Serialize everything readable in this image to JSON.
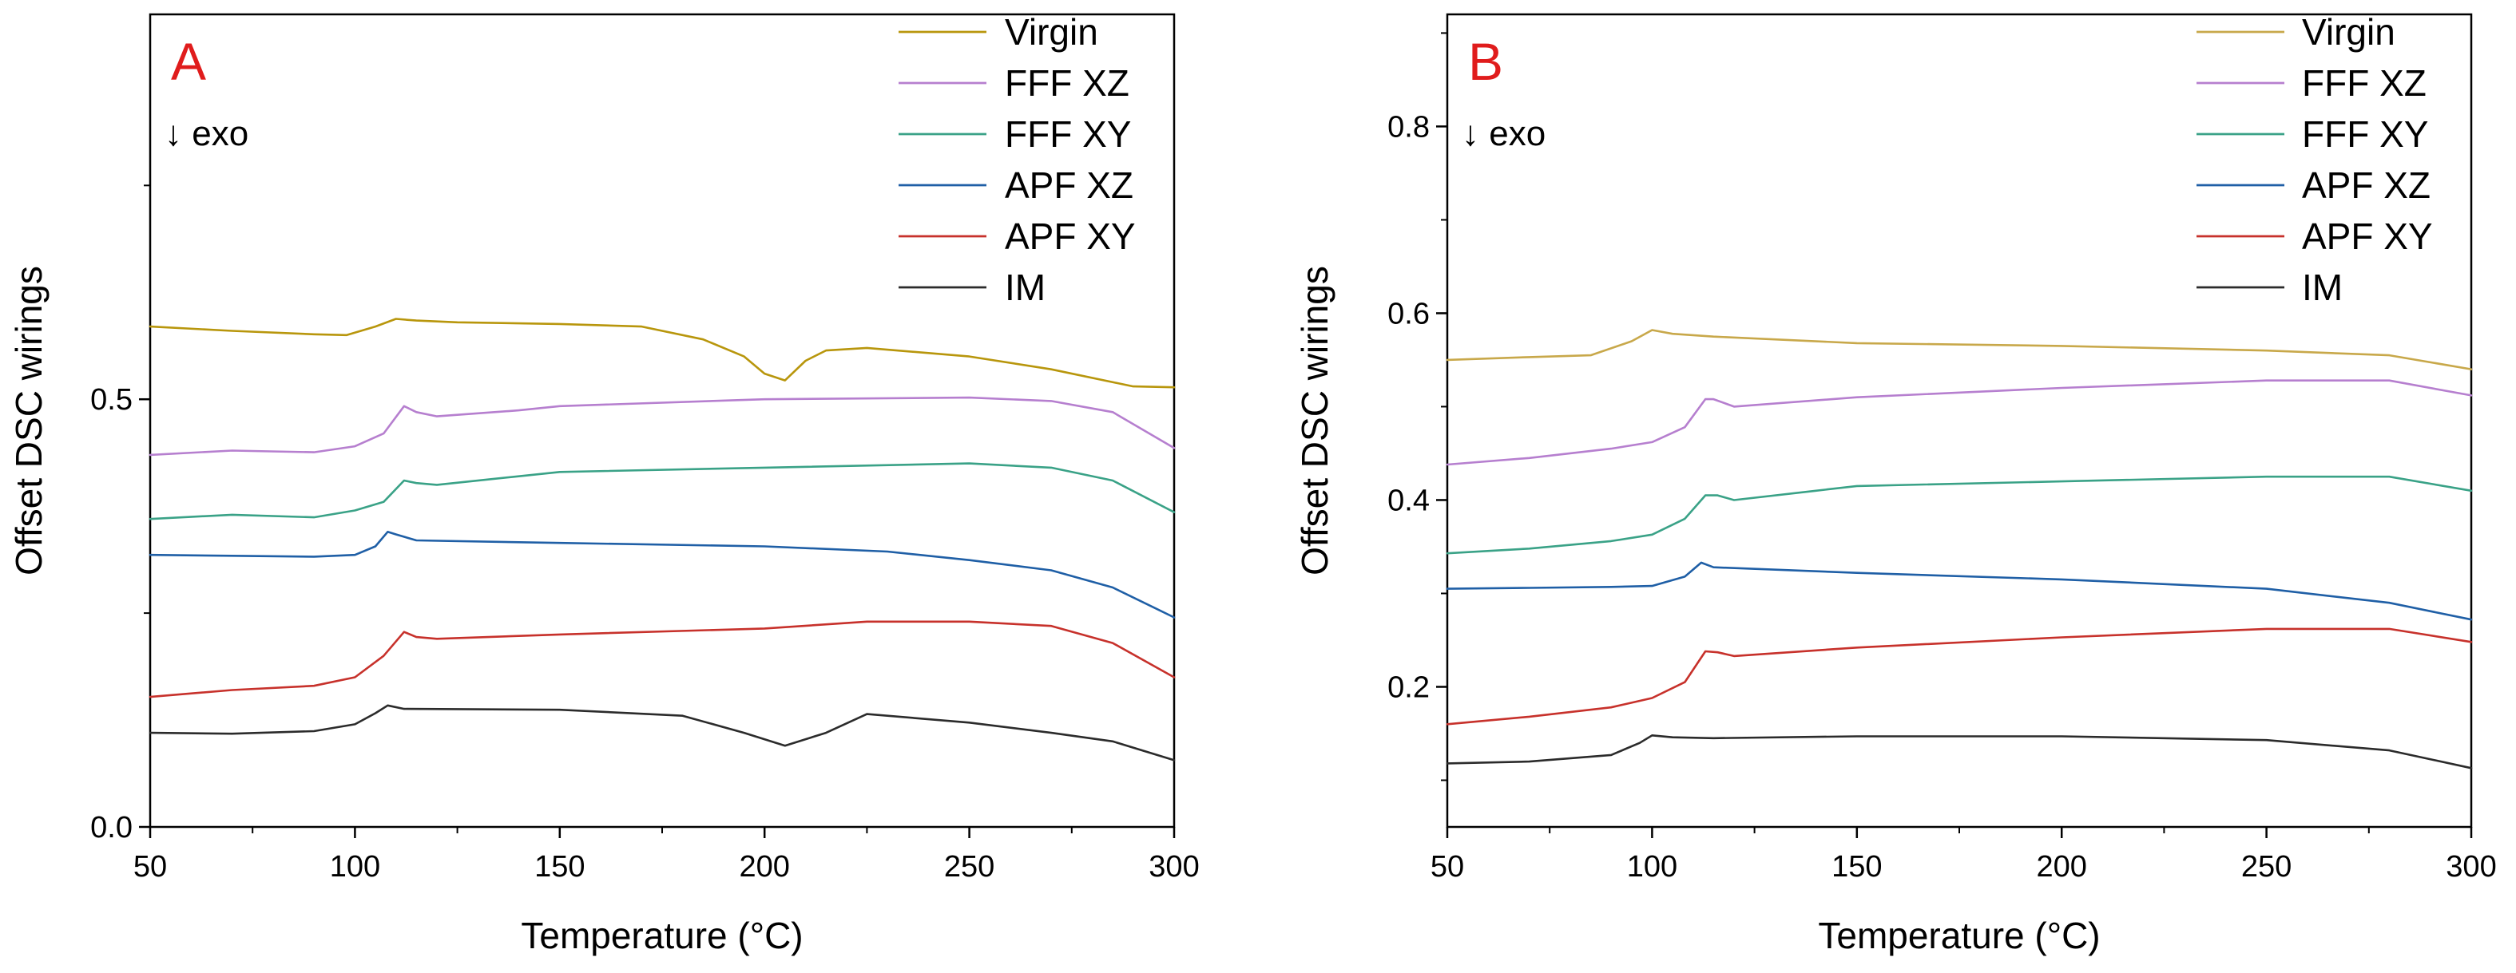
{
  "chart_data": [
    {
      "type": "line",
      "panel_label": "A",
      "annotation": "↓ exo",
      "xlabel": "Temperature (°C)",
      "ylabel": "Offset DSC wirings",
      "xlim": [
        50,
        300
      ],
      "ylim": [
        0.0,
        0.95
      ],
      "xticks": [
        50,
        100,
        150,
        200,
        250,
        300
      ],
      "yticks": [
        0.0,
        0.5
      ],
      "ytick_labels": [
        "0.0",
        "0.5"
      ],
      "legend_position": "top-right",
      "series": [
        {
          "name": "Virgin",
          "color": "#b8960c",
          "x": [
            50,
            70,
            90,
            98,
            105,
            110,
            115,
            125,
            150,
            170,
            185,
            195,
            200,
            205,
            210,
            215,
            225,
            250,
            270,
            290,
            300
          ],
          "y": [
            0.585,
            0.58,
            0.576,
            0.575,
            0.585,
            0.594,
            0.592,
            0.59,
            0.588,
            0.585,
            0.57,
            0.55,
            0.53,
            0.522,
            0.545,
            0.557,
            0.56,
            0.55,
            0.535,
            0.515,
            0.514
          ]
        },
        {
          "name": "FFF XZ",
          "color": "#b67fcf",
          "x": [
            50,
            70,
            90,
            100,
            107,
            112,
            115,
            120,
            140,
            150,
            200,
            250,
            270,
            285,
            300
          ],
          "y": [
            0.435,
            0.44,
            0.438,
            0.445,
            0.46,
            0.492,
            0.485,
            0.48,
            0.487,
            0.492,
            0.5,
            0.502,
            0.498,
            0.485,
            0.443
          ]
        },
        {
          "name": "FFF XY",
          "color": "#3aa287",
          "x": [
            50,
            70,
            90,
            100,
            107,
            112,
            115,
            120,
            140,
            150,
            200,
            250,
            270,
            285,
            300
          ],
          "y": [
            0.36,
            0.365,
            0.362,
            0.37,
            0.38,
            0.405,
            0.402,
            0.4,
            0.41,
            0.415,
            0.42,
            0.425,
            0.42,
            0.405,
            0.368
          ]
        },
        {
          "name": "APF XZ",
          "color": "#1f5fa6",
          "x": [
            50,
            70,
            90,
            100,
            105,
            108,
            110,
            115,
            150,
            200,
            230,
            250,
            270,
            285,
            300
          ],
          "y": [
            0.318,
            0.317,
            0.316,
            0.318,
            0.328,
            0.345,
            0.342,
            0.335,
            0.332,
            0.328,
            0.322,
            0.312,
            0.3,
            0.28,
            0.245
          ]
        },
        {
          "name": "APF XY",
          "color": "#c7312b",
          "x": [
            50,
            70,
            90,
            100,
            107,
            112,
            115,
            120,
            150,
            200,
            225,
            250,
            270,
            285,
            300
          ],
          "y": [
            0.152,
            0.16,
            0.165,
            0.175,
            0.2,
            0.228,
            0.222,
            0.22,
            0.225,
            0.232,
            0.24,
            0.24,
            0.235,
            0.215,
            0.175
          ]
        },
        {
          "name": "IM",
          "color": "#2b2b2b",
          "x": [
            50,
            70,
            90,
            100,
            105,
            108,
            112,
            150,
            180,
            195,
            205,
            215,
            225,
            250,
            270,
            285,
            300
          ],
          "y": [
            0.11,
            0.109,
            0.112,
            0.12,
            0.133,
            0.142,
            0.138,
            0.137,
            0.13,
            0.11,
            0.095,
            0.11,
            0.132,
            0.122,
            0.11,
            0.1,
            0.078
          ]
        }
      ]
    },
    {
      "type": "line",
      "panel_label": "B",
      "annotation": "↓ exo",
      "xlabel": "Temperature (°C)",
      "ylabel": "Offset DSC wirings",
      "xlim": [
        50,
        300
      ],
      "ylim": [
        0.05,
        0.92
      ],
      "xticks": [
        50,
        100,
        150,
        200,
        250,
        300
      ],
      "yticks": [
        0.2,
        0.4,
        0.6,
        0.8
      ],
      "ytick_labels": [
        "0.2",
        "0.4",
        "0.6",
        "0.8"
      ],
      "legend_position": "top-right",
      "series": [
        {
          "name": "Virgin",
          "color": "#c8a84a",
          "x": [
            50,
            70,
            85,
            95,
            100,
            105,
            115,
            150,
            200,
            250,
            280,
            300
          ],
          "y": [
            0.55,
            0.553,
            0.555,
            0.57,
            0.582,
            0.578,
            0.575,
            0.568,
            0.565,
            0.56,
            0.555,
            0.54
          ]
        },
        {
          "name": "FFF XZ",
          "color": "#b67fcf",
          "x": [
            50,
            70,
            90,
            100,
            108,
            113,
            115,
            120,
            150,
            200,
            250,
            280,
            300
          ],
          "y": [
            0.438,
            0.445,
            0.455,
            0.462,
            0.478,
            0.508,
            0.508,
            0.5,
            0.51,
            0.52,
            0.528,
            0.528,
            0.512
          ]
        },
        {
          "name": "FFF XY",
          "color": "#3aa287",
          "x": [
            50,
            70,
            90,
            100,
            108,
            113,
            116,
            120,
            140,
            150,
            200,
            250,
            280,
            300
          ],
          "y": [
            0.343,
            0.348,
            0.356,
            0.363,
            0.38,
            0.405,
            0.405,
            0.4,
            0.41,
            0.415,
            0.42,
            0.425,
            0.425,
            0.41
          ]
        },
        {
          "name": "APF XZ",
          "color": "#1f5fa6",
          "x": [
            50,
            70,
            90,
            100,
            108,
            112,
            115,
            150,
            200,
            250,
            280,
            300
          ],
          "y": [
            0.305,
            0.306,
            0.307,
            0.308,
            0.318,
            0.333,
            0.328,
            0.322,
            0.315,
            0.305,
            0.29,
            0.272
          ]
        },
        {
          "name": "APF XY",
          "color": "#c7312b",
          "x": [
            50,
            70,
            90,
            100,
            108,
            113,
            116,
            120,
            150,
            200,
            250,
            280,
            300
          ],
          "y": [
            0.16,
            0.168,
            0.178,
            0.188,
            0.205,
            0.238,
            0.237,
            0.233,
            0.242,
            0.253,
            0.262,
            0.262,
            0.248
          ]
        },
        {
          "name": "IM",
          "color": "#2b2b2b",
          "x": [
            50,
            70,
            90,
            97,
            100,
            105,
            115,
            150,
            200,
            250,
            280,
            300
          ],
          "y": [
            0.118,
            0.12,
            0.127,
            0.14,
            0.148,
            0.146,
            0.145,
            0.147,
            0.147,
            0.143,
            0.132,
            0.113
          ]
        }
      ]
    }
  ]
}
